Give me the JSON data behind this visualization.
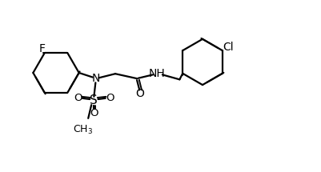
{
  "background": "#ffffff",
  "line_color": "#000000",
  "line_width": 1.6,
  "fig_width": 4.01,
  "fig_height": 2.15,
  "dpi": 100,
  "xlim": [
    0,
    10
  ],
  "ylim": [
    0,
    5.37
  ]
}
